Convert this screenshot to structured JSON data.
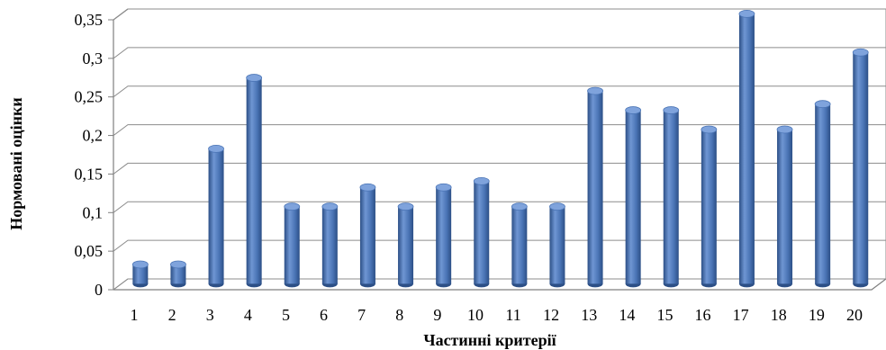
{
  "chart_data": {
    "type": "bar",
    "style": "3d-cylinder",
    "categories": [
      "1",
      "2",
      "3",
      "4",
      "5",
      "6",
      "7",
      "8",
      "9",
      "10",
      "11",
      "12",
      "13",
      "14",
      "15",
      "16",
      "17",
      "18",
      "19",
      "20"
    ],
    "values": [
      0.025,
      0.025,
      0.175,
      0.267,
      0.1,
      0.1,
      0.125,
      0.1,
      0.125,
      0.133,
      0.1,
      0.1,
      0.25,
      0.225,
      0.225,
      0.2,
      0.35,
      0.2,
      0.233,
      0.3
    ],
    "title": "",
    "xlabel": "Частинні критерії",
    "ylabel": "Нормовані оцінки",
    "ylim": [
      0,
      0.35
    ],
    "yticks": [
      0,
      0.05,
      0.1,
      0.15,
      0.2,
      0.25,
      0.3,
      0.35
    ],
    "ytick_labels": [
      "0",
      "0,05",
      "0,1",
      "0,15",
      "0,2",
      "0,25",
      "0,3",
      "0,35"
    ],
    "grid": true,
    "legend": "none",
    "colors": {
      "bar_front": "#4a74b5",
      "bar_light": "#6f96d3",
      "bar_dark": "#2c4f86",
      "bar_top": "#7fa3dc",
      "grid": "#8c8c8c",
      "axis": "#7f7f7f"
    }
  }
}
